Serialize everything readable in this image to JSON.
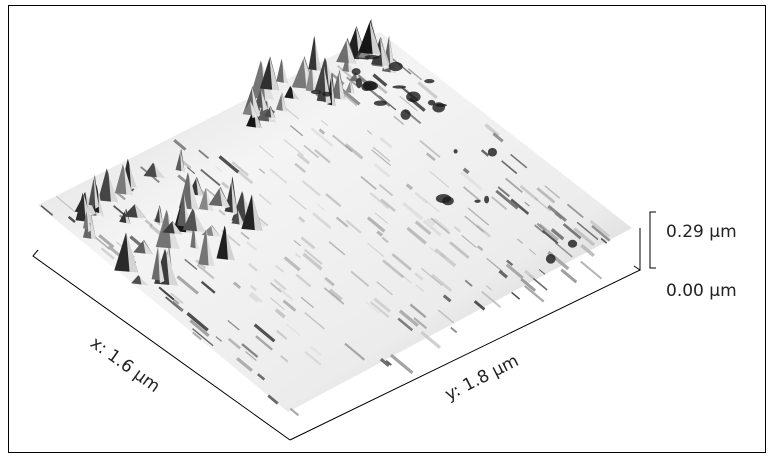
{
  "axes": {
    "x_label": "x: 1.6 µm",
    "y_label": "y: 1.8 µm",
    "z_top": "0.29 µm",
    "z_bottom": "0.00 µm"
  }
}
